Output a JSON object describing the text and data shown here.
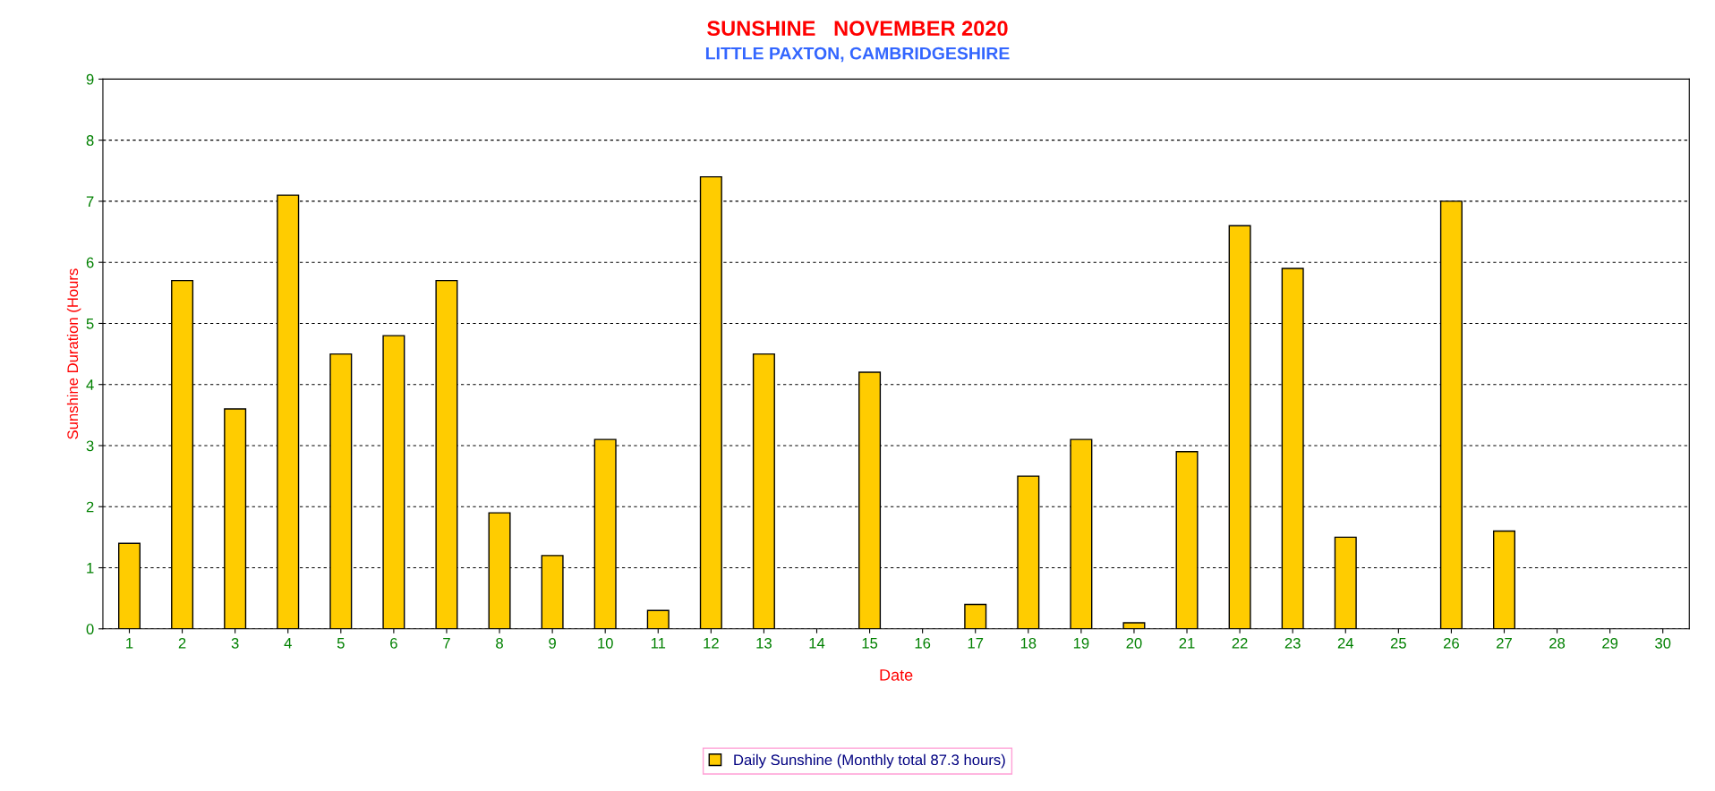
{
  "chart_data": {
    "type": "bar",
    "title": "SUNSHINE   NOVEMBER 2020",
    "subtitle": "LITTLE PAXTON, CAMBRIDGESHIRE",
    "xlabel": "Date",
    "ylabel": "Sunshine Duration (Hours",
    "categories": [
      "1",
      "2",
      "3",
      "4",
      "5",
      "6",
      "7",
      "8",
      "9",
      "10",
      "11",
      "12",
      "13",
      "14",
      "15",
      "16",
      "17",
      "18",
      "19",
      "20",
      "21",
      "22",
      "23",
      "24",
      "25",
      "26",
      "27",
      "28",
      "29",
      "30"
    ],
    "series": [
      {
        "name": "Daily Sunshine (Monthly total 87.3 hours)",
        "color": "#ffcc00",
        "values": [
          1.4,
          5.7,
          3.6,
          7.1,
          4.5,
          4.8,
          5.7,
          1.9,
          1.2,
          3.1,
          0.3,
          7.4,
          4.5,
          0,
          4.2,
          0,
          0.4,
          2.5,
          3.1,
          0.1,
          2.9,
          6.6,
          5.9,
          1.5,
          0,
          7.0,
          1.6,
          0,
          0,
          0
        ]
      }
    ],
    "ylim": [
      0,
      9
    ],
    "yticks": [
      0,
      1,
      2,
      3,
      4,
      5,
      6,
      7,
      8,
      9
    ],
    "grid": "y",
    "legend": "bottom"
  }
}
